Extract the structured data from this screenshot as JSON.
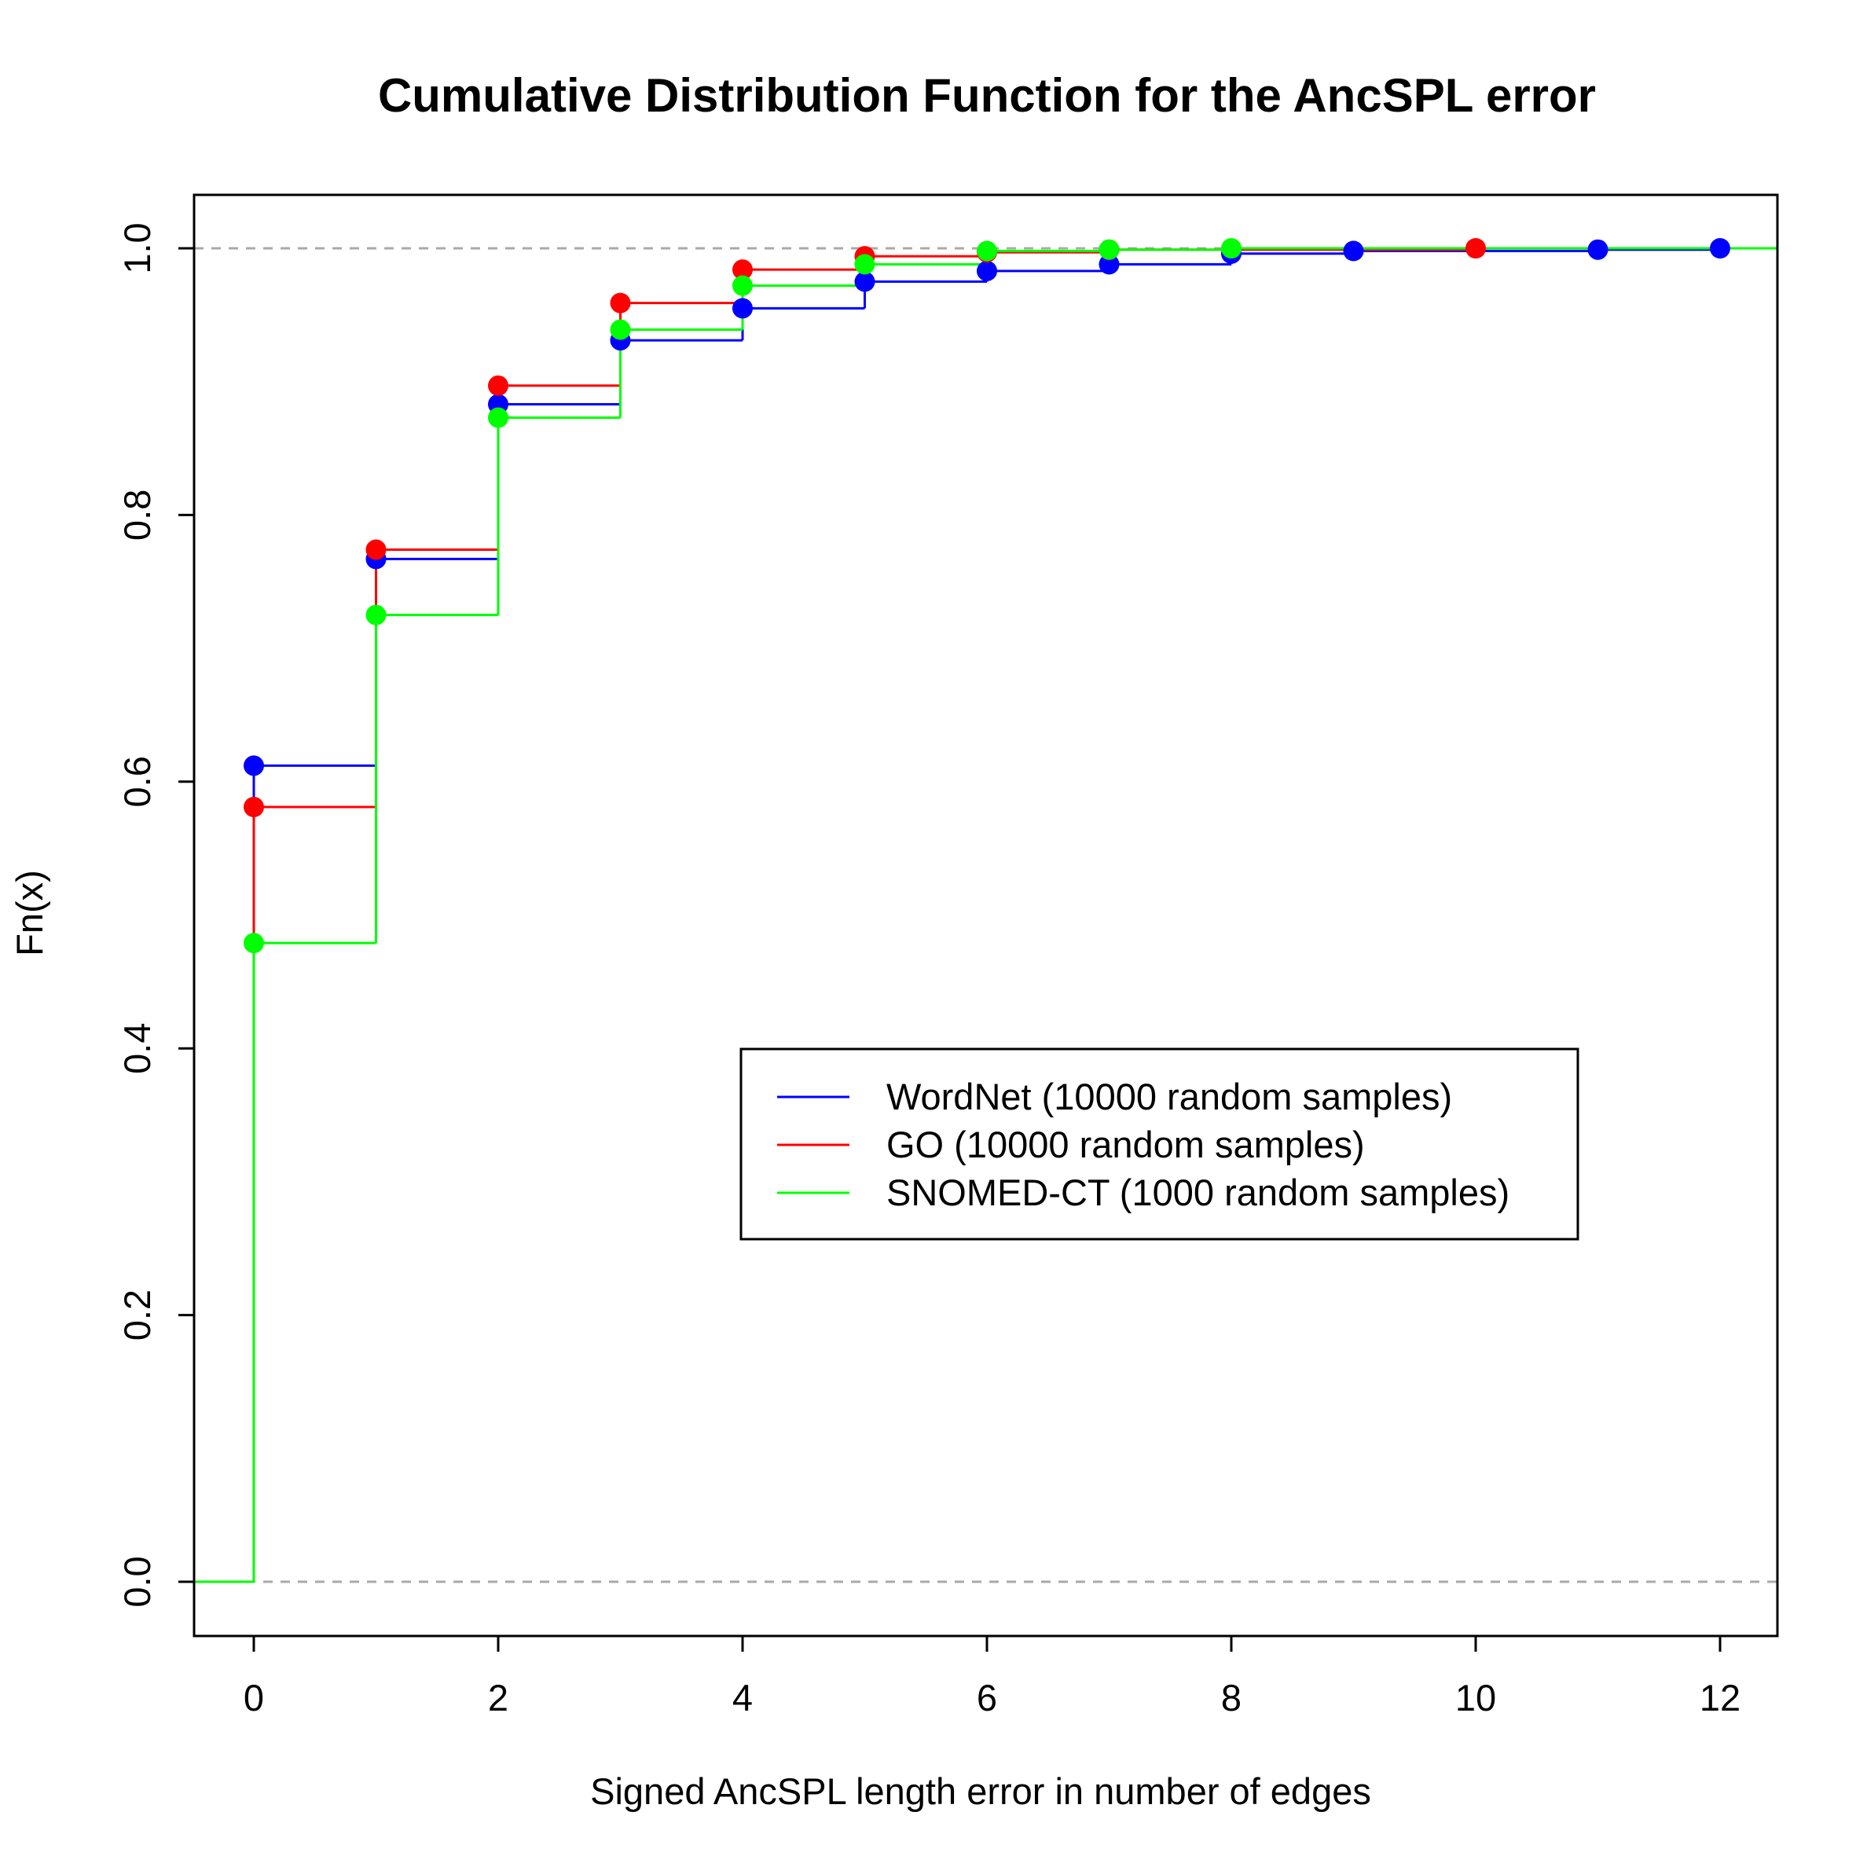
{
  "chart_data": {
    "type": "line",
    "subtype": "step-ecdf",
    "title": "Cumulative Distribution Function for the AncSPL error",
    "xlabel": "Signed AncSPL length error in number of edges",
    "ylabel": "Fn(x)",
    "xlim": [
      -0.5,
      12.5
    ],
    "ylim": [
      0.0,
      1.0
    ],
    "x_ticks": [
      0,
      2,
      4,
      6,
      8,
      10,
      12
    ],
    "x_tick_labels": [
      "0",
      "2",
      "4",
      "6",
      "8",
      "10",
      "12"
    ],
    "y_ticks": [
      0.0,
      0.2,
      0.4,
      0.6,
      0.8,
      1.0
    ],
    "y_tick_labels": [
      "0.0",
      "0.2",
      "0.4",
      "0.6",
      "0.8",
      "1.0"
    ],
    "reference_lines": [
      0.0,
      1.0
    ],
    "reference_line_color": "#aaaaaa",
    "grid": false,
    "legend_position": "center-right",
    "series": [
      {
        "name": "WordNet (10000 random samples)",
        "color": "#0000ff",
        "x": [
          0,
          1,
          2,
          3,
          4,
          5,
          6,
          7,
          8,
          9,
          11,
          12
        ],
        "y": [
          0.612,
          0.767,
          0.883,
          0.931,
          0.955,
          0.975,
          0.983,
          0.988,
          0.996,
          0.998,
          0.999,
          1.0
        ]
      },
      {
        "name": "GO (10000 random samples)",
        "color": "#ff0000",
        "x": [
          0,
          1,
          2,
          3,
          4,
          5,
          6,
          7,
          10
        ],
        "y": [
          0.581,
          0.774,
          0.897,
          0.959,
          0.984,
          0.994,
          0.997,
          0.999,
          1.0
        ]
      },
      {
        "name": "SNOMED-CT (1000 random samples)",
        "color": "#00ff00",
        "x": [
          0,
          1,
          2,
          3,
          4,
          5,
          6,
          7,
          8
        ],
        "y": [
          0.479,
          0.725,
          0.873,
          0.939,
          0.972,
          0.988,
          0.998,
          0.999,
          1.0
        ]
      }
    ]
  }
}
